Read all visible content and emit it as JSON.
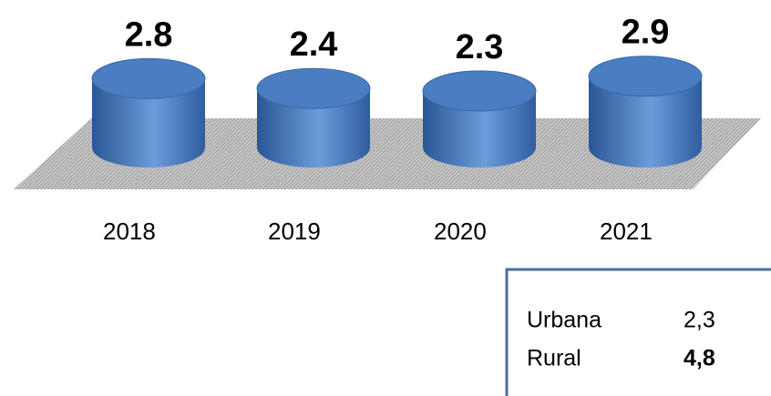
{
  "chart_data": {
    "type": "cylinder",
    "categories": [
      "2018",
      "2019",
      "2020",
      "2021"
    ],
    "values": [
      2.8,
      2.4,
      2.3,
      2.9
    ],
    "color": "#4f81bd"
  },
  "table": {
    "rows": [
      [
        "Urbana",
        "2,3"
      ],
      [
        "Rural",
        "4,8"
      ]
    ]
  }
}
